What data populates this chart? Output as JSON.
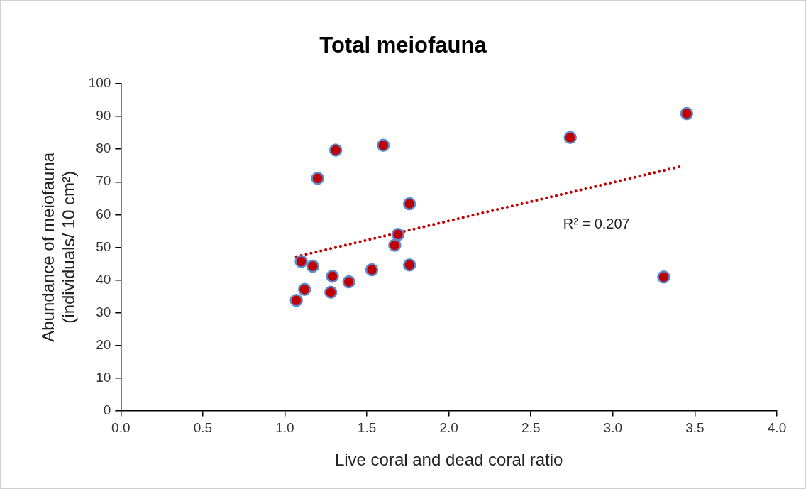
{
  "chart_data": {
    "type": "scatter",
    "title": "Total meiofauna",
    "xlabel": "Live coral and dead coral ratio",
    "ylabel": "Abundance of meiofauna (individuals/ 10 cm²)",
    "xlim": [
      0,
      4
    ],
    "xticks": [
      {
        "value": 0,
        "label": "0.0"
      },
      0.5,
      {
        "value": 1,
        "label": "1.0"
      },
      1.5,
      {
        "value": 2,
        "label": "2.0"
      },
      2.5,
      {
        "value": 3,
        "label": "3.0"
      },
      3.5,
      {
        "value": 4,
        "label": "4.0"
      }
    ],
    "ylim": [
      0,
      100
    ],
    "yticks": [
      0,
      10,
      20,
      30,
      40,
      50,
      60,
      70,
      80,
      90,
      100
    ],
    "grid": false,
    "legend": false,
    "marker": "circle",
    "series": [
      {
        "color": "#c00000",
        "x": [
          1.31,
          1.6,
          1.2,
          1.76,
          1.69,
          1.67,
          1.76,
          1.1,
          1.17,
          1.53,
          1.29,
          1.39,
          1.12,
          1.28,
          1.07,
          2.74,
          3.45,
          3.31
        ],
        "values": [
          79.7,
          81.2,
          71.1,
          63.3,
          53.9,
          50.6,
          44.6,
          45.6,
          44.2,
          43.1,
          41.1,
          39.4,
          37.1,
          36.2,
          33.7,
          83.6,
          90.9,
          40.9
        ]
      },
      {
        "type": "line",
        "color": "#c00000",
        "line_style": "dotted",
        "marker": "none",
        "x": [
          1.07,
          3.42
        ],
        "values": [
          47.1,
          74.8
        ]
      }
    ],
    "annotations": [
      "R² = 0.207"
    ]
  }
}
